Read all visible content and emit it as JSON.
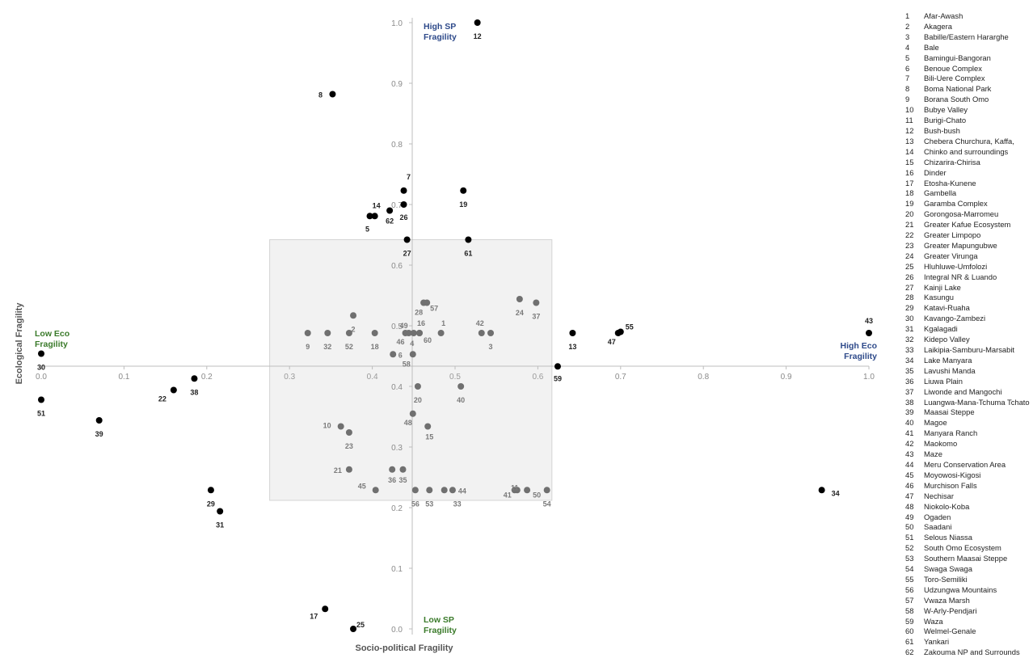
{
  "chart_data": {
    "type": "scatter",
    "title": "",
    "xlabel": "Socio-political Fragility",
    "ylabel": "Ecological Fragility",
    "x_ticks": [
      "0.0",
      "0.1",
      "0.2",
      "0.3",
      "0.4",
      "0.5",
      "0.6",
      "0.7",
      "0.8",
      "0.9",
      "1.0"
    ],
    "y_ticks": [
      "0.0",
      "0.1",
      "0.2",
      "0.3",
      "0.4",
      "0.5",
      "0.6",
      "0.7",
      "0.8",
      "0.9",
      "1.0"
    ],
    "xlim": [
      0,
      1
    ],
    "ylim": [
      0,
      1
    ],
    "quadrant_labels": {
      "top": "High SP Fragility",
      "bottom": "Low SP Fragility",
      "left": "Low Eco Fragility",
      "right": "High Eco Fragility"
    },
    "colors": {
      "outside": "#000000",
      "inside": "#707070",
      "sp_labels": "#2e4a8a",
      "eco_labels": "#3a7a2a",
      "box": "#e6e6e6"
    },
    "highlight_box": {
      "x_range": [
        0.276,
        0.617
      ],
      "y_range": [
        0.212,
        0.642
      ]
    },
    "series": [
      {
        "name": "",
        "points": [
          {
            "id": "1",
            "x": 0.483,
            "y": 0.488,
            "inside": true
          },
          {
            "id": "2",
            "x": 0.377,
            "y": 0.517,
            "inside": true
          },
          {
            "id": "3",
            "x": 0.543,
            "y": 0.488,
            "inside": true
          },
          {
            "id": "4",
            "x": 0.45,
            "y": 0.488,
            "inside": true
          },
          {
            "id": "5",
            "x": 0.397,
            "y": 0.681,
            "inside": false
          },
          {
            "id": "6",
            "x": 0.425,
            "y": 0.453,
            "inside": true
          },
          {
            "id": "7",
            "x": 0.438,
            "y": 0.723,
            "inside": false
          },
          {
            "id": "8",
            "x": 0.352,
            "y": 0.882,
            "inside": false
          },
          {
            "id": "9",
            "x": 0.322,
            "y": 0.488,
            "inside": true
          },
          {
            "id": "10",
            "x": 0.362,
            "y": 0.334,
            "inside": true
          },
          {
            "id": "11",
            "x": 0.572,
            "y": 0.229,
            "inside": true
          },
          {
            "id": "12",
            "x": 0.527,
            "y": 1.0,
            "inside": false
          },
          {
            "id": "13",
            "x": 0.642,
            "y": 0.488,
            "inside": false
          },
          {
            "id": "14",
            "x": 0.403,
            "y": 0.681,
            "inside": false
          },
          {
            "id": "15",
            "x": 0.467,
            "y": 0.334,
            "inside": true
          },
          {
            "id": "16",
            "x": 0.457,
            "y": 0.488,
            "inside": true
          },
          {
            "id": "17",
            "x": 0.343,
            "y": 0.033,
            "inside": false
          },
          {
            "id": "18",
            "x": 0.403,
            "y": 0.488,
            "inside": true
          },
          {
            "id": "19",
            "x": 0.51,
            "y": 0.723,
            "inside": false
          },
          {
            "id": "20",
            "x": 0.455,
            "y": 0.4,
            "inside": true
          },
          {
            "id": "21",
            "x": 0.372,
            "y": 0.263,
            "inside": true
          },
          {
            "id": "22",
            "x": 0.16,
            "y": 0.394,
            "inside": false
          },
          {
            "id": "23",
            "x": 0.372,
            "y": 0.324,
            "inside": true
          },
          {
            "id": "24",
            "x": 0.578,
            "y": 0.544,
            "inside": true
          },
          {
            "id": "25",
            "x": 0.377,
            "y": 0.0,
            "inside": false
          },
          {
            "id": "26",
            "x": 0.438,
            "y": 0.7,
            "inside": false
          },
          {
            "id": "27",
            "x": 0.442,
            "y": 0.642,
            "inside": false
          },
          {
            "id": "28",
            "x": 0.462,
            "y": 0.538,
            "inside": true
          },
          {
            "id": "29",
            "x": 0.205,
            "y": 0.229,
            "inside": false
          },
          {
            "id": "30",
            "x": 0.0,
            "y": 0.454,
            "inside": false
          },
          {
            "id": "31",
            "x": 0.216,
            "y": 0.194,
            "inside": false
          },
          {
            "id": "32",
            "x": 0.346,
            "y": 0.488,
            "inside": true
          },
          {
            "id": "33",
            "x": 0.487,
            "y": 0.229,
            "inside": true
          },
          {
            "id": "34",
            "x": 0.943,
            "y": 0.229,
            "inside": false
          },
          {
            "id": "35",
            "x": 0.437,
            "y": 0.263,
            "inside": true
          },
          {
            "id": "36",
            "x": 0.424,
            "y": 0.263,
            "inside": true
          },
          {
            "id": "37",
            "x": 0.598,
            "y": 0.538,
            "inside": true
          },
          {
            "id": "38",
            "x": 0.185,
            "y": 0.413,
            "inside": false
          },
          {
            "id": "39",
            "x": 0.07,
            "y": 0.344,
            "inside": false
          },
          {
            "id": "40",
            "x": 0.507,
            "y": 0.4,
            "inside": true
          },
          {
            "id": "41",
            "x": 0.575,
            "y": 0.229,
            "inside": true
          },
          {
            "id": "42",
            "x": 0.532,
            "y": 0.488,
            "inside": true
          },
          {
            "id": "43",
            "x": 1.0,
            "y": 0.488,
            "inside": false
          },
          {
            "id": "44",
            "x": 0.497,
            "y": 0.229,
            "inside": true
          },
          {
            "id": "45",
            "x": 0.404,
            "y": 0.229,
            "inside": true
          },
          {
            "id": "46",
            "x": 0.44,
            "y": 0.488,
            "inside": true
          },
          {
            "id": "47",
            "x": 0.697,
            "y": 0.488,
            "inside": false
          },
          {
            "id": "48",
            "x": 0.449,
            "y": 0.355,
            "inside": true
          },
          {
            "id": "49",
            "x": 0.444,
            "y": 0.488,
            "inside": true
          },
          {
            "id": "50",
            "x": 0.587,
            "y": 0.229,
            "inside": true
          },
          {
            "id": "51",
            "x": 0.0,
            "y": 0.378,
            "inside": false
          },
          {
            "id": "52",
            "x": 0.372,
            "y": 0.488,
            "inside": true
          },
          {
            "id": "53",
            "x": 0.469,
            "y": 0.229,
            "inside": true
          },
          {
            "id": "54",
            "x": 0.611,
            "y": 0.229,
            "inside": true
          },
          {
            "id": "55",
            "x": 0.7,
            "y": 0.49,
            "inside": false
          },
          {
            "id": "56",
            "x": 0.452,
            "y": 0.229,
            "inside": true
          },
          {
            "id": "57",
            "x": 0.466,
            "y": 0.538,
            "inside": true
          },
          {
            "id": "58",
            "x": 0.449,
            "y": 0.453,
            "inside": true
          },
          {
            "id": "59",
            "x": 0.624,
            "y": 0.433,
            "inside": false
          },
          {
            "id": "60",
            "x": 0.457,
            "y": 0.488,
            "inside": true
          },
          {
            "id": "61",
            "x": 0.516,
            "y": 0.642,
            "inside": false
          },
          {
            "id": "62",
            "x": 0.421,
            "y": 0.69,
            "inside": false
          }
        ]
      }
    ],
    "legend": [
      {
        "n": "1",
        "name": "Afar-Awash"
      },
      {
        "n": "2",
        "name": "Akagera"
      },
      {
        "n": "3",
        "name": "Babille/Eastern Hararghe"
      },
      {
        "n": "4",
        "name": "Bale"
      },
      {
        "n": "5",
        "name": "Bamingui-Bangoran"
      },
      {
        "n": "6",
        "name": "Benoue Complex"
      },
      {
        "n": "7",
        "name": "Bili-Uere Complex"
      },
      {
        "n": "8",
        "name": "Boma National Park"
      },
      {
        "n": "9",
        "name": "Borana South Omo"
      },
      {
        "n": "10",
        "name": "Bubye Valley"
      },
      {
        "n": "11",
        "name": "Burigi-Chato"
      },
      {
        "n": "12",
        "name": "Bush-bush"
      },
      {
        "n": "13",
        "name": "Chebera Churchura, Kaffa,"
      },
      {
        "n": "14",
        "name": "Chinko and surroundings"
      },
      {
        "n": "15",
        "name": "Chizarira-Chirisa"
      },
      {
        "n": "16",
        "name": "Dinder"
      },
      {
        "n": "17",
        "name": "Etosha-Kunene"
      },
      {
        "n": "18",
        "name": "Gambella"
      },
      {
        "n": "19",
        "name": "Garamba Complex"
      },
      {
        "n": "20",
        "name": "Gorongosa-Marromeu"
      },
      {
        "n": "21",
        "name": "Greater Kafue Ecosystem"
      },
      {
        "n": "22",
        "name": "Greater Limpopo"
      },
      {
        "n": "23",
        "name": "Greater Mapungubwe"
      },
      {
        "n": "24",
        "name": "Greater Virunga"
      },
      {
        "n": "25",
        "name": "Hluhluwe-Umfolozi"
      },
      {
        "n": "26",
        "name": "Integral NR & Luando"
      },
      {
        "n": "27",
        "name": "Kainji Lake"
      },
      {
        "n": "28",
        "name": "Kasungu"
      },
      {
        "n": "29",
        "name": "Katavi-Ruaha"
      },
      {
        "n": "30",
        "name": "Kavango-Zambezi"
      },
      {
        "n": "31",
        "name": "Kgalagadi"
      },
      {
        "n": "32",
        "name": "Kidepo Valley"
      },
      {
        "n": "33",
        "name": "Laikipia-Samburu-Marsabit"
      },
      {
        "n": "34",
        "name": "Lake Manyara"
      },
      {
        "n": "35",
        "name": "Lavushi Manda"
      },
      {
        "n": "36",
        "name": "Liuwa Plain"
      },
      {
        "n": "37",
        "name": "Liwonde and Mangochi"
      },
      {
        "n": "38",
        "name": "Luangwa-Mana-Tchuma Tchato"
      },
      {
        "n": "39",
        "name": "Maasai Steppe"
      },
      {
        "n": "40",
        "name": "Magoe"
      },
      {
        "n": "41",
        "name": "Manyara Ranch"
      },
      {
        "n": "42",
        "name": "Maokomo"
      },
      {
        "n": "43",
        "name": "Maze"
      },
      {
        "n": "44",
        "name": "Meru Conservation Area"
      },
      {
        "n": "45",
        "name": "Moyowosi-Kigosi"
      },
      {
        "n": "46",
        "name": "Murchison Falls"
      },
      {
        "n": "47",
        "name": "Nechisar"
      },
      {
        "n": "48",
        "name": "Niokolo-Koba"
      },
      {
        "n": "49",
        "name": "Ogaden"
      },
      {
        "n": "50",
        "name": "Saadani"
      },
      {
        "n": "51",
        "name": "Selous Niassa"
      },
      {
        "n": "52",
        "name": "South Omo Ecosystem"
      },
      {
        "n": "53",
        "name": "Southern Maasai Steppe"
      },
      {
        "n": "54",
        "name": "Swaga Swaga"
      },
      {
        "n": "55",
        "name": "Toro-Semiliki"
      },
      {
        "n": "56",
        "name": "Udzungwa Mountains"
      },
      {
        "n": "57",
        "name": "Vwaza Marsh"
      },
      {
        "n": "58",
        "name": "W-Arly-Pendjari"
      },
      {
        "n": "59",
        "name": "Waza"
      },
      {
        "n": "60",
        "name": "Welmel-Genale"
      },
      {
        "n": "61",
        "name": "Yankari"
      },
      {
        "n": "62",
        "name": "Zakouma NP and Surrounds"
      }
    ]
  }
}
